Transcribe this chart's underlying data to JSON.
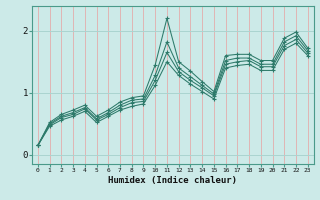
{
  "xlabel": "Humidex (Indice chaleur)",
  "bg_color": "#cceae8",
  "line_color": "#2d7a6a",
  "grid_color_v": "#e8a0a0",
  "grid_color_h": "#aad4d0",
  "xlim": [
    -0.5,
    23.5
  ],
  "ylim": [
    -0.15,
    2.4
  ],
  "xticks": [
    0,
    1,
    2,
    3,
    4,
    5,
    6,
    7,
    8,
    9,
    10,
    11,
    12,
    13,
    14,
    15,
    16,
    17,
    18,
    19,
    20,
    21,
    22,
    23
  ],
  "yticks": [
    0,
    1,
    2
  ],
  "series": [
    [
      0.15,
      0.52,
      0.65,
      0.72,
      0.8,
      0.62,
      0.72,
      0.85,
      0.92,
      0.95,
      1.45,
      2.2,
      1.5,
      1.35,
      1.18,
      1.02,
      1.6,
      1.62,
      1.62,
      1.52,
      1.52,
      1.88,
      1.98,
      1.72
    ],
    [
      0.15,
      0.5,
      0.62,
      0.68,
      0.76,
      0.58,
      0.68,
      0.8,
      0.88,
      0.9,
      1.28,
      1.82,
      1.4,
      1.26,
      1.12,
      0.98,
      1.52,
      1.56,
      1.56,
      1.46,
      1.46,
      1.82,
      1.92,
      1.68
    ],
    [
      0.15,
      0.48,
      0.6,
      0.65,
      0.74,
      0.56,
      0.65,
      0.76,
      0.84,
      0.86,
      1.2,
      1.65,
      1.34,
      1.2,
      1.08,
      0.95,
      1.46,
      1.5,
      1.52,
      1.42,
      1.42,
      1.76,
      1.86,
      1.64
    ],
    [
      0.15,
      0.46,
      0.56,
      0.62,
      0.7,
      0.52,
      0.62,
      0.72,
      0.78,
      0.82,
      1.12,
      1.5,
      1.28,
      1.14,
      1.02,
      0.9,
      1.4,
      1.44,
      1.46,
      1.36,
      1.36,
      1.7,
      1.8,
      1.6
    ]
  ]
}
